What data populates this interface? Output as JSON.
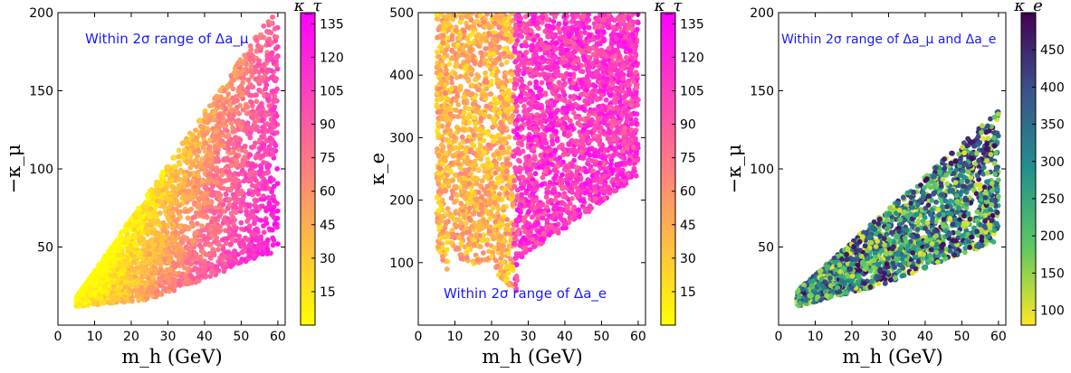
{
  "chart_data": [
    {
      "type": "scatter",
      "xlabel": "m_h (GeV)",
      "ylabel": "−κ_μ",
      "xlim": [
        0,
        62
      ],
      "ylim": [
        0,
        200
      ],
      "xticks": [
        "0",
        "10",
        "20",
        "30",
        "40",
        "50",
        "60"
      ],
      "yticks": [
        "50",
        "100",
        "150",
        "200"
      ],
      "annotation": "Within 2σ range of Δa_μ",
      "colorbar": {
        "label": "κ_τ",
        "colormap": "spring_r",
        "range": [
          0,
          140
        ],
        "ticks": [
          "15",
          "30",
          "45",
          "60",
          "75",
          "90",
          "105",
          "120",
          "135"
        ]
      },
      "region": {
        "description_points": [
          [
            5,
            12
          ],
          [
            5,
            22
          ],
          [
            20,
            75
          ],
          [
            40,
            140
          ],
          [
            55,
            195
          ],
          [
            60,
            200
          ],
          [
            60,
            42
          ],
          [
            28,
            18
          ],
          [
            5,
            12
          ]
        ]
      }
    },
    {
      "type": "scatter",
      "xlabel": "m_h (GeV)",
      "ylabel": "κ_e",
      "xlim": [
        0,
        62
      ],
      "ylim": [
        0,
        500
      ],
      "xticks": [
        "0",
        "10",
        "20",
        "30",
        "40",
        "50",
        "60"
      ],
      "yticks": [
        "100",
        "200",
        "300",
        "400",
        "500"
      ],
      "annotation": "Within 2σ range of Δa_e",
      "colorbar": {
        "label": "κ_τ",
        "colormap": "spring_r",
        "range": [
          0,
          140
        ],
        "ticks": [
          "15",
          "30",
          "45",
          "60",
          "75",
          "90",
          "105",
          "120",
          "135"
        ]
      }
    },
    {
      "type": "scatter",
      "xlabel": "m_h (GeV)",
      "ylabel": "−κ_μ",
      "xlim": [
        0,
        62
      ],
      "ylim": [
        0,
        200
      ],
      "xticks": [
        "0",
        "10",
        "20",
        "30",
        "40",
        "50",
        "60"
      ],
      "yticks": [
        "50",
        "100",
        "150",
        "200"
      ],
      "annotation": "Within 2σ range of Δa_μ and Δa_e",
      "colorbar": {
        "label": "κ_e",
        "colormap": "viridis_r",
        "range": [
          80,
          500
        ],
        "ticks": [
          "100",
          "150",
          "200",
          "250",
          "300",
          "350",
          "400",
          "450"
        ]
      }
    }
  ],
  "colors": {
    "spring_r": [
      "#ffff00",
      "#ff00ff"
    ],
    "viridis_r": [
      "#fde725",
      "#5ec962",
      "#21918c",
      "#3b528b",
      "#440154"
    ],
    "annotation": "#1a1aff"
  }
}
